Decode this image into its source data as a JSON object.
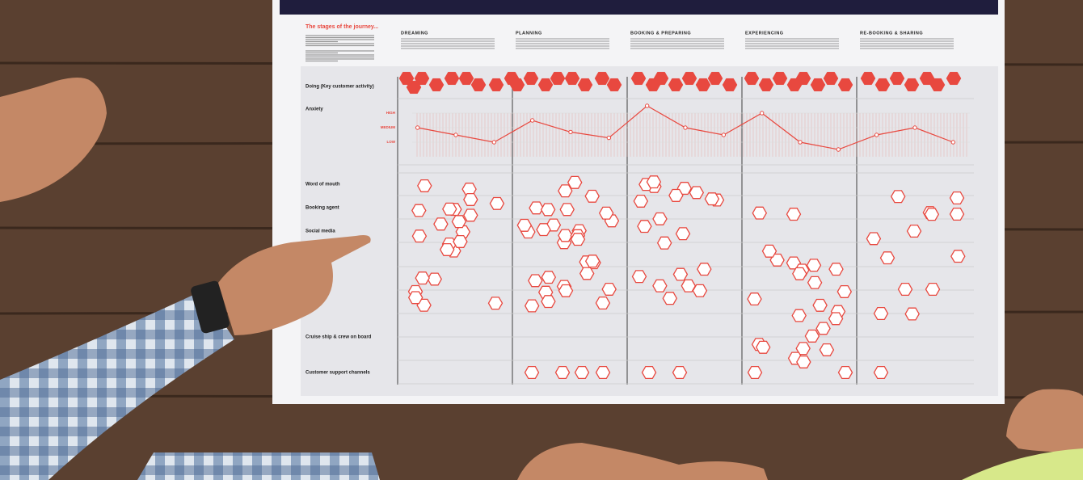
{
  "poster": {
    "title": "The stages of the journey...",
    "stages": [
      "DREAMING",
      "PLANNING",
      "BOOKING & PREPARING",
      "EXPERIENCING",
      "RE-BOOKING & SHARING"
    ],
    "rows": [
      "Doing (Key customer activity)",
      "Anxiety",
      "Word of mouth",
      "Booking agent",
      "Social media",
      "Cruise ship & crew on board",
      "Customer support channels"
    ],
    "chart_data": {
      "type": "line",
      "title": "Anxiety",
      "x": [
        1,
        2,
        3,
        4,
        5,
        6,
        7,
        8,
        9,
        10,
        11,
        12,
        13,
        14,
        15
      ],
      "values": [
        1,
        0.5,
        0,
        1.5,
        0.7,
        0.3,
        2.5,
        1,
        0.5,
        2,
        0,
        -0.5,
        0.5,
        1,
        0
      ],
      "color": "#e8483f",
      "xlim": [
        0.5,
        15.5
      ],
      "ylim": [
        -1,
        3
      ],
      "yticks": [
        {
          "value": 2,
          "label": "HIGH"
        },
        {
          "value": 1,
          "label": "MEDIUM"
        },
        {
          "value": 0,
          "label": "LOW"
        }
      ]
    }
  }
}
